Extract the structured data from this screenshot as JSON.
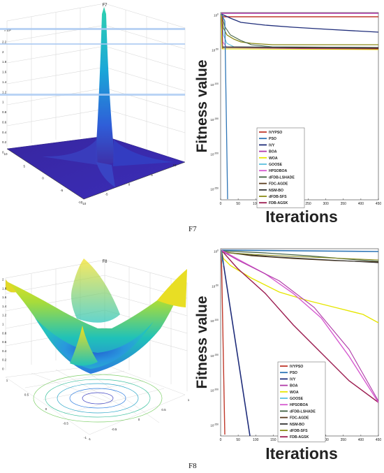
{
  "chart_data": [
    {
      "type": "surface",
      "title": "F7",
      "z_exponent": "× 10⁸",
      "zticks": [
        "0",
        "0.2",
        "0.4",
        "0.6",
        "0.8",
        "1",
        "1.2",
        "1.4",
        "1.6",
        "1.8",
        "2",
        "2.2"
      ],
      "xticks": [
        "-10",
        "-5",
        "0",
        "5",
        "10"
      ],
      "yticks": [
        "10",
        "5",
        "0",
        "-5",
        "-10"
      ],
      "colormap": [
        "#2b1f8f",
        "#2f5ed8",
        "#1aa7d8",
        "#2fd1b0"
      ]
    },
    {
      "type": "line",
      "xlabel": "Iterations",
      "ylabel": "Fitness value",
      "xticks": [
        "0",
        "50",
        "100",
        "150",
        "200",
        "250",
        "300",
        "350",
        "400",
        "450"
      ],
      "ytick_mantissa": [
        "10",
        "10",
        "10",
        "10",
        "10",
        "10"
      ],
      "ytick_exponents": [
        "0",
        "-50",
        "-100",
        "-150",
        "-200",
        "-250"
      ],
      "legend": [
        "IVYPSO",
        "PSO",
        "IVY",
        "BOA",
        "WOA",
        "GOOSE",
        "HPSOBOA",
        "dFDB-LSHADE",
        "FDC-AGDE",
        "NSM-BO",
        "dFDB-SFS",
        "FDB-AGSK"
      ],
      "colors": [
        "#c0392b",
        "#2e75b6",
        "#1f2d7a",
        "#b03aa8",
        "#e6e600",
        "#5bc0de",
        "#d65ad0",
        "#3f5f3f",
        "#5a3c1e",
        "#2f2f2f",
        "#8a8a16",
        "#9b1b4f"
      ]
    },
    {
      "type": "surface",
      "title": "F8",
      "zticks": [
        "0",
        "0.2",
        "0.4",
        "0.6",
        "0.8",
        "1",
        "1.2",
        "1.4",
        "1.6",
        "1.8",
        "2"
      ],
      "xticks": [
        "-1",
        "-0.5",
        "0",
        "0.5",
        "1"
      ],
      "yticks": [
        "1",
        "0.5",
        "0",
        "-0.5",
        "-1"
      ],
      "colormap": [
        "#2b1f8f",
        "#2a7be0",
        "#20c2b8",
        "#a8dc3a",
        "#f5e01a"
      ]
    },
    {
      "type": "line",
      "xlabel": "Iterations",
      "ylabel": "Fitness value",
      "xticks": [
        "0",
        "50",
        "100",
        "150",
        "200",
        "250",
        "300",
        "350",
        "400",
        "450"
      ],
      "ytick_mantissa": [
        "10",
        "10",
        "10",
        "10",
        "10",
        "10"
      ],
      "ytick_exponents": [
        "0",
        "-50",
        "-100",
        "-150",
        "-200",
        "-250"
      ],
      "legend": [
        "IVYPSO",
        "PSO",
        "IVY",
        "BOA",
        "WOA",
        "GOOSE",
        "HPSOBOA",
        "dFDB-LSHADE",
        "FDC-AGDE",
        "NSM-BO",
        "dFDB-SFS",
        "FDB-AGSK"
      ],
      "colors": [
        "#c0392b",
        "#2e75b6",
        "#1f2d7a",
        "#b03aa8",
        "#e6e600",
        "#5bc0de",
        "#d65ad0",
        "#3f5f3f",
        "#5a3c1e",
        "#2f2f2f",
        "#8a8a16",
        "#9b1b4f"
      ]
    }
  ],
  "captions": {
    "f7": "F7",
    "f8": "F8"
  }
}
